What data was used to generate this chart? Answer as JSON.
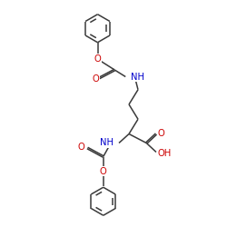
{
  "bg_color": "#ffffff",
  "bond_color": "#3a3a3a",
  "o_color": "#cc0000",
  "n_color": "#0000cc",
  "figsize": [
    2.5,
    2.5
  ],
  "dpi": 100,
  "bond_lw": 1.1,
  "font_size": 7.2,
  "ring_r": 0.62,
  "xlim": [
    0,
    10
  ],
  "ylim": [
    0,
    10
  ]
}
